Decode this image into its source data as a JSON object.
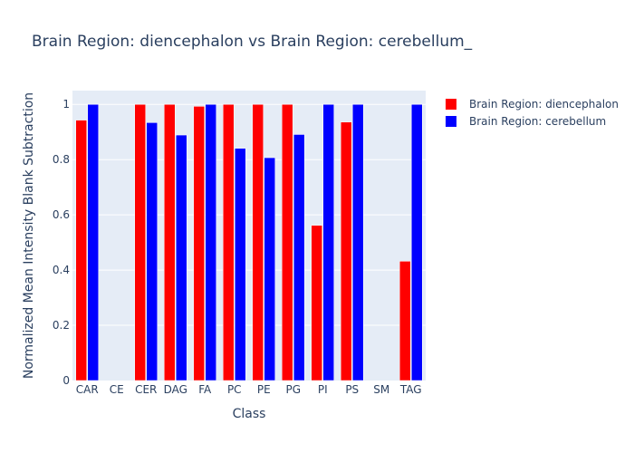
{
  "chart_data": {
    "type": "bar",
    "title": "Brain Region: diencephalon vs Brain Region: cerebellum_",
    "xlabel": "Class",
    "ylabel": "Normalized Mean Intensity Blank Subtraction",
    "categories": [
      "CAR",
      "CE",
      "CER",
      "DAG",
      "FA",
      "PC",
      "PE",
      "PG",
      "PI",
      "PS",
      "SM",
      "TAG"
    ],
    "series": [
      {
        "name": "Brain Region: diencephalon",
        "color": "#ff0000",
        "values": [
          0.943,
          0,
          1.0,
          1.0,
          0.993,
          1.0,
          1.0,
          1.0,
          0.562,
          0.936,
          0,
          0.432
        ]
      },
      {
        "name": "Brain Region: cerebellum",
        "color": "#0000ff",
        "values": [
          1.0,
          0,
          0.934,
          0.889,
          1.0,
          0.841,
          0.807,
          0.891,
          1.0,
          1.0,
          0,
          1.0
        ]
      }
    ],
    "ylim": [
      0,
      1.05
    ],
    "yticks": [
      0,
      0.2,
      0.4,
      0.6,
      0.8,
      1
    ],
    "ytick_labels": [
      "0",
      "0.2",
      "0.4",
      "0.6",
      "0.8",
      "1"
    ],
    "grid": true,
    "legend_position": "top-right",
    "plot_background": "#e5ecf6"
  }
}
